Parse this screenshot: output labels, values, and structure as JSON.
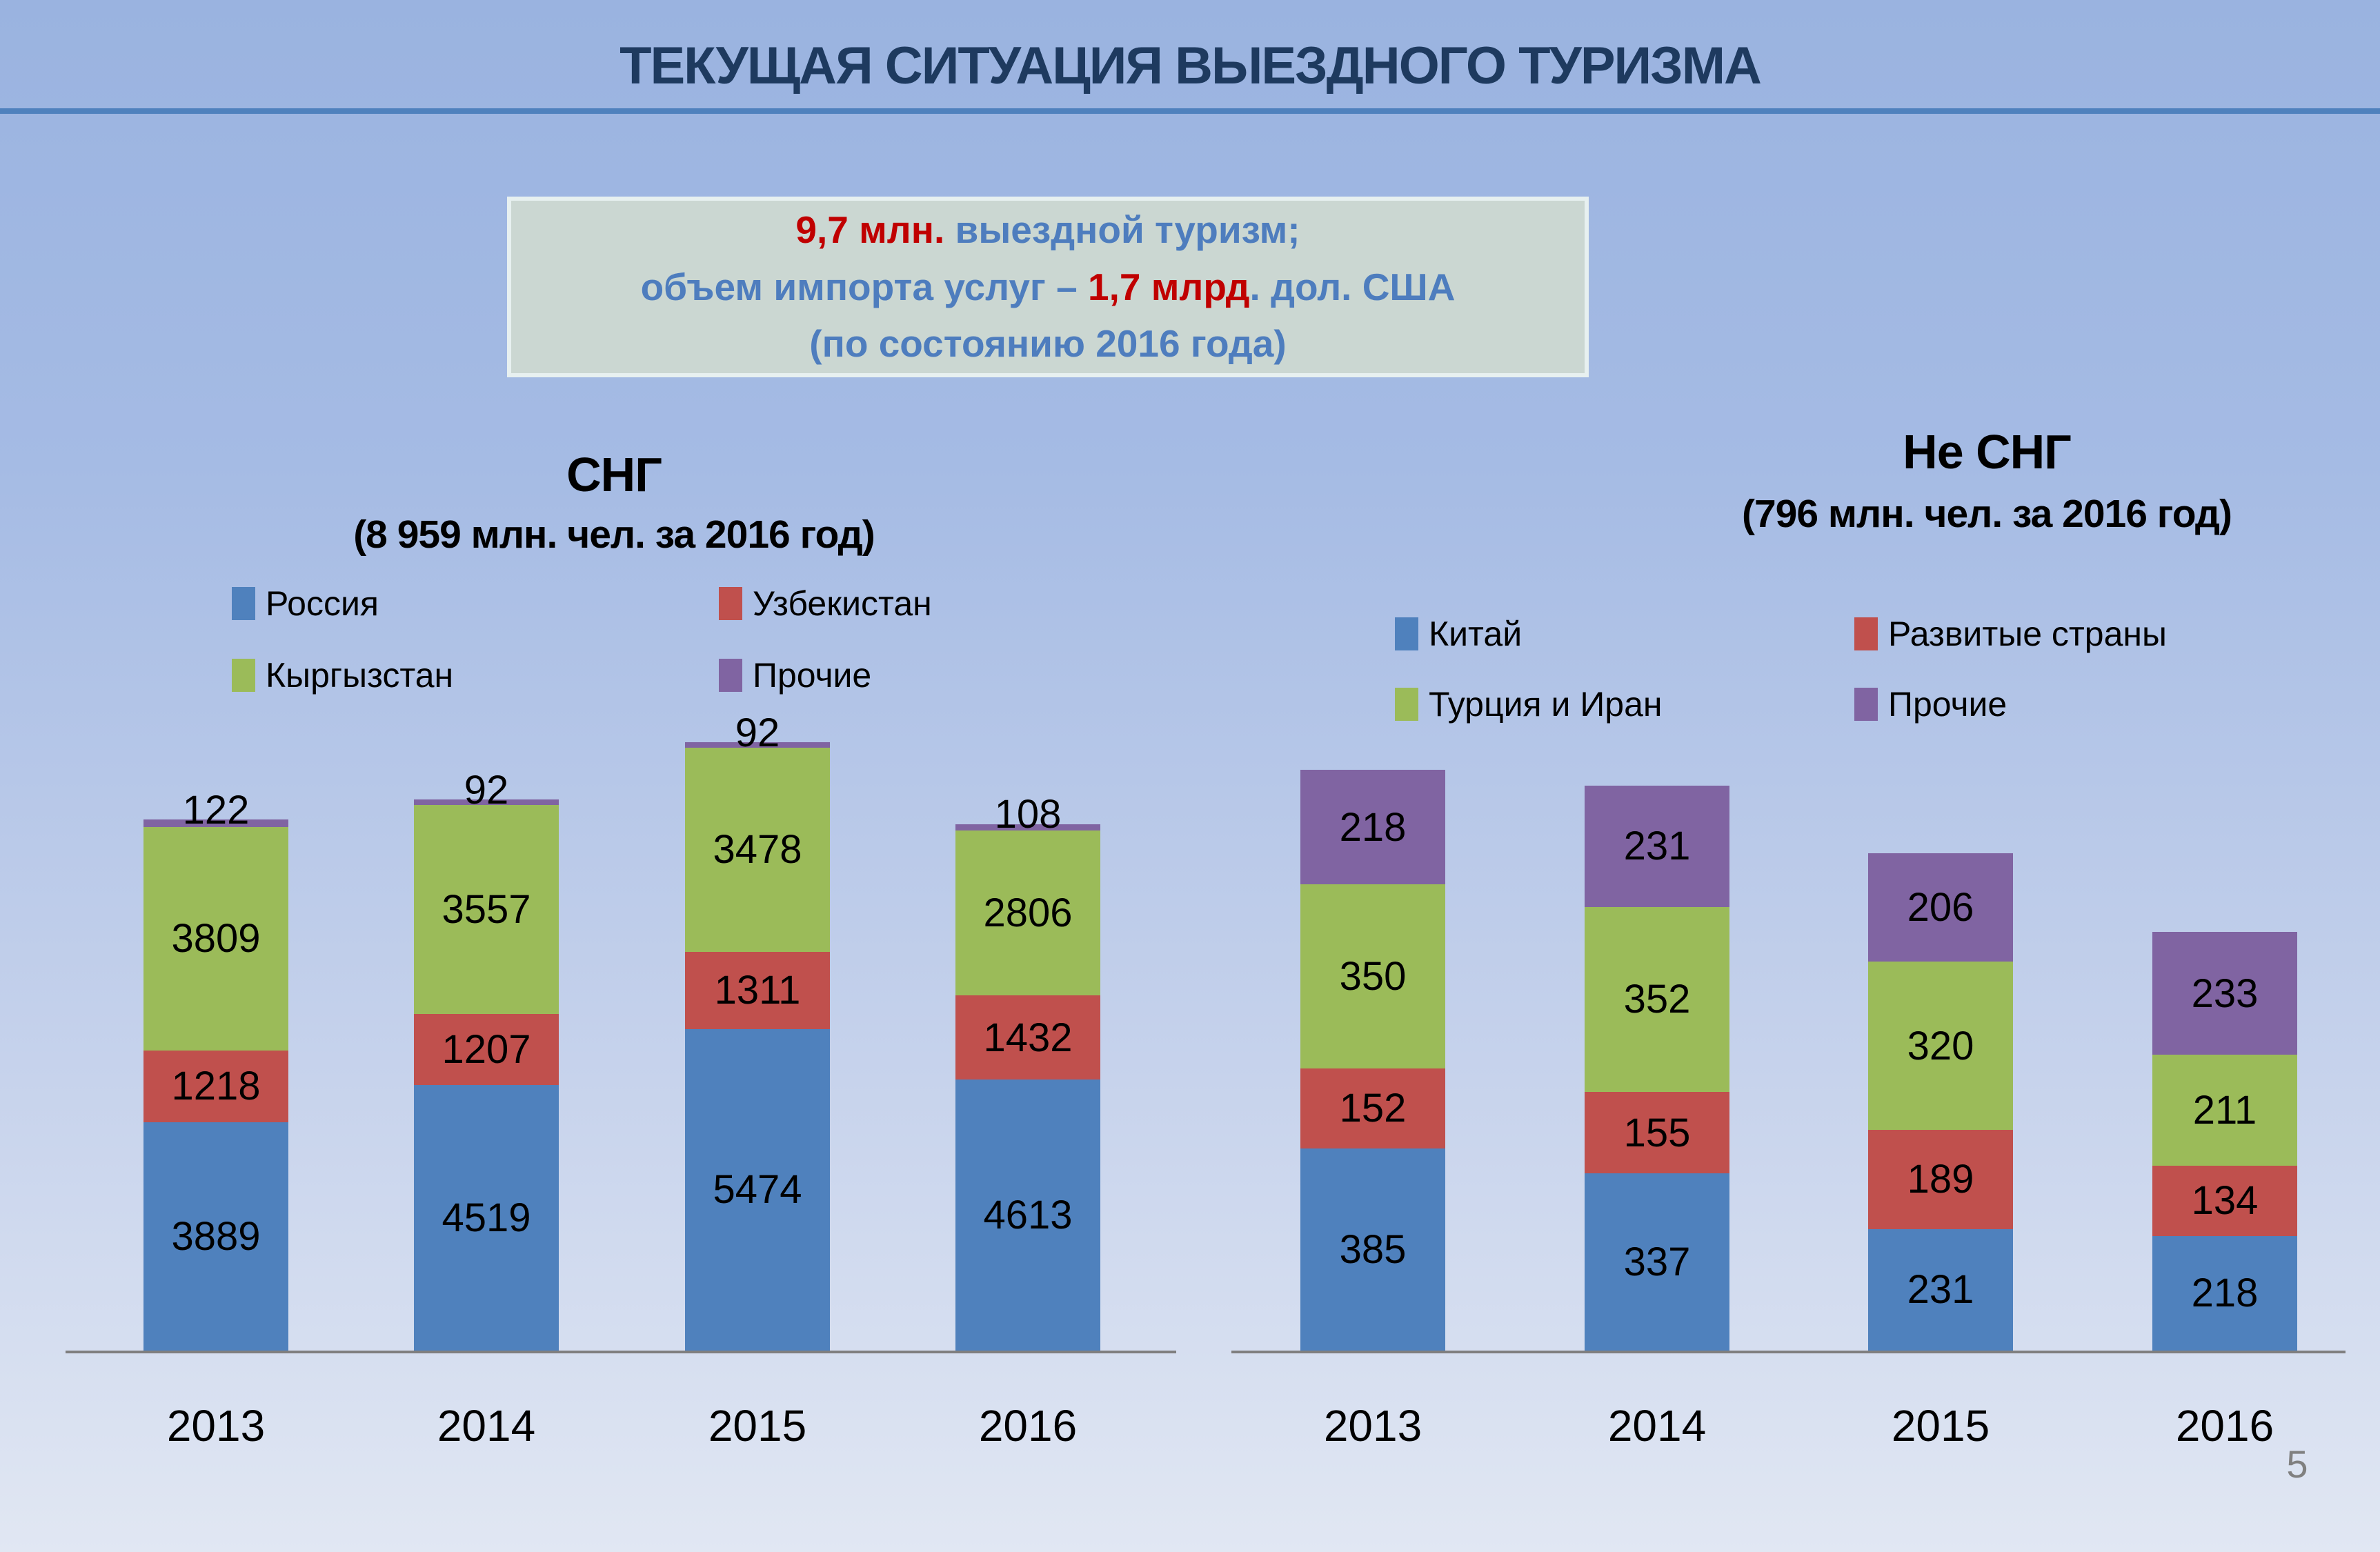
{
  "slide": {
    "title": "ТЕКУЩАЯ СИТУАЦИЯ ВЫЕЗДНОГО ТУРИЗМА",
    "page_number": "5"
  },
  "infobox": {
    "lines": [
      [
        {
          "text": "9,7 млн.",
          "color": "red"
        },
        {
          "text": " выездной туризм;",
          "color": "blue"
        }
      ],
      [
        {
          "text": "объем импорта услуг – ",
          "color": "blue"
        },
        {
          "text": "1,7 млрд",
          "color": "red"
        },
        {
          "text": ". дол. США",
          "color": "blue"
        }
      ],
      [
        {
          "text": "(по состоянию 2016 года)",
          "color": "blue"
        }
      ]
    ]
  },
  "colors": {
    "series_blue": "#4F81BD",
    "series_red": "#C0504D",
    "series_green": "#9BBB59",
    "series_purple": "#8064A2",
    "title_navy": "#1E3A5F",
    "separator_blue": "#4F81BD",
    "infobox_bg": "#CBD7D2",
    "infobox_text_blue": "#4E7DBE",
    "infobox_text_red": "#C00000",
    "axis_gray": "#7F7F7F",
    "page_number_gray": "#808080"
  },
  "chart_data": [
    {
      "type": "bar",
      "stacked": true,
      "title": "СНГ",
      "subtitle": "(8 959 млн. чел. за 2016 год)",
      "categories": [
        "2013",
        "2014",
        "2015",
        "2016"
      ],
      "series": [
        {
          "name": "Россия",
          "color": "#4F81BD",
          "values": [
            3889,
            4519,
            5474,
            4613
          ]
        },
        {
          "name": "Узбекистан",
          "color": "#C0504D",
          "values": [
            1218,
            1207,
            1311,
            1432
          ]
        },
        {
          "name": "Кыргызстан",
          "color": "#9BBB59",
          "values": [
            3809,
            3557,
            3478,
            2806
          ]
        },
        {
          "name": "Прочие",
          "color": "#8064A2",
          "values": [
            122,
            92,
            92,
            108
          ]
        }
      ],
      "totals": [
        9038,
        9375,
        10355,
        8959
      ],
      "legend_position": "top",
      "legend_columns": 2,
      "grid": false,
      "data_labels": true,
      "ylim": [
        0,
        10355
      ]
    },
    {
      "type": "bar",
      "stacked": true,
      "title": "Не СНГ",
      "subtitle": "(796 млн. чел. за 2016 год)",
      "categories": [
        "2013",
        "2014",
        "2015",
        "2016"
      ],
      "series": [
        {
          "name": "Китай",
          "color": "#4F81BD",
          "values": [
            385,
            337,
            231,
            218
          ]
        },
        {
          "name": "Развитые страны",
          "color": "#C0504D",
          "values": [
            152,
            155,
            189,
            134
          ]
        },
        {
          "name": "Турция и Иран",
          "color": "#9BBB59",
          "values": [
            350,
            352,
            320,
            211
          ]
        },
        {
          "name": "Прочие",
          "color": "#8064A2",
          "values": [
            218,
            231,
            206,
            233
          ]
        }
      ],
      "totals": [
        1105,
        1075,
        946,
        796
      ],
      "legend_position": "top",
      "legend_columns": 2,
      "grid": false,
      "data_labels": true,
      "ylim": [
        0,
        1105
      ]
    }
  ]
}
